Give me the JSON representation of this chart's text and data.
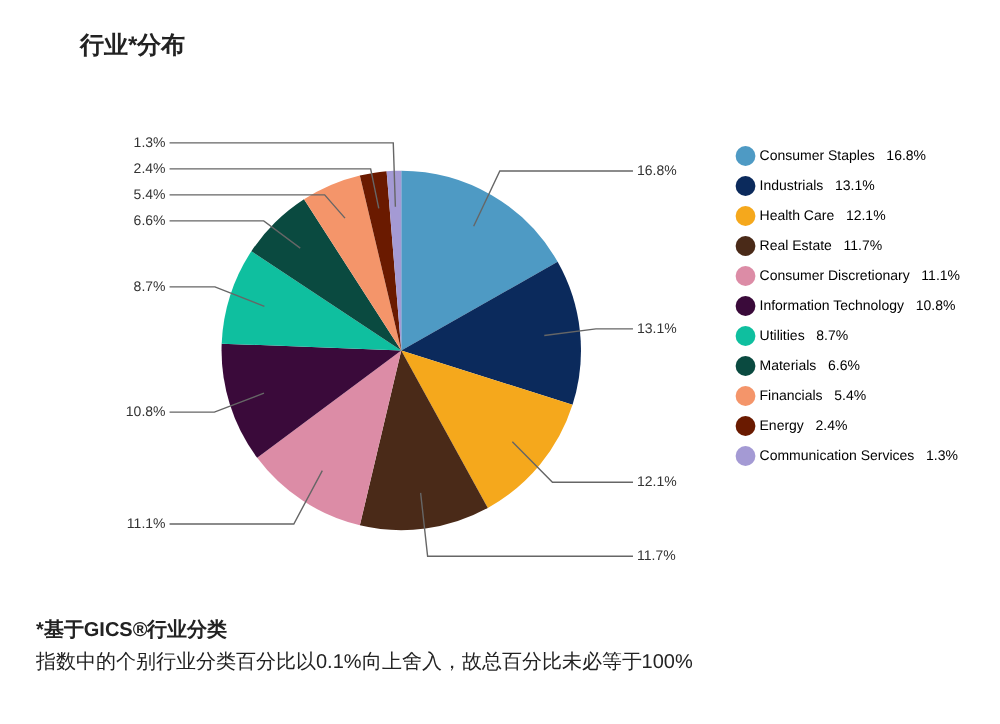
{
  "chart_data": {
    "type": "pie",
    "title": "行业*分布",
    "categories": [
      "Consumer Staples",
      "Industrials",
      "Health Care",
      "Real Estate",
      "Consumer Discretionary",
      "Information Technology",
      "Utilities",
      "Materials",
      "Financials",
      "Energy",
      "Communication Services"
    ],
    "values": [
      16.8,
      13.1,
      12.1,
      11.7,
      11.1,
      10.8,
      8.7,
      6.6,
      5.4,
      2.4,
      1.3
    ],
    "value_labels": [
      "16.8%",
      "13.1%",
      "12.1%",
      "11.7%",
      "11.1%",
      "10.8%",
      "8.7%",
      "6.6%",
      "5.4%",
      "2.4%",
      "1.3%"
    ],
    "colors": [
      "#4e9ac4",
      "#0b2a5c",
      "#f5a81c",
      "#4a2a18",
      "#dc8ca6",
      "#3a0a3a",
      "#0fbf9f",
      "#0a4a40",
      "#f4956a",
      "#6a1a00",
      "#a49ad4"
    ],
    "legend": "right",
    "annotations": [
      "*基于GICS®行业分类",
      "指数中的个别行业分类百分比以0.1%向上舍入，故总百分比未必等于100%"
    ]
  }
}
